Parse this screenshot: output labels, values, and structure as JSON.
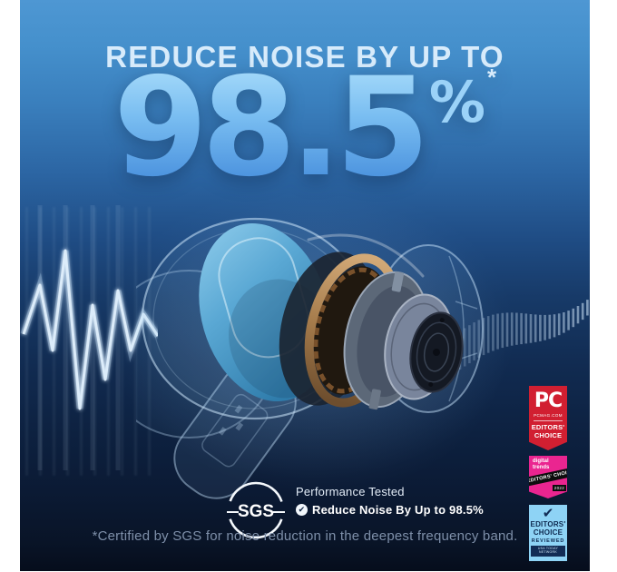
{
  "ad": {
    "headline": "REDUCE NOISE BY UP TO",
    "stat": {
      "value": "98.5",
      "unit": "%",
      "footnote_marker": "*"
    },
    "footnote": "*Certified by SGS for noise reduction in the deepest frequency band."
  },
  "certification": {
    "logo": "SGS",
    "check_glyph": "✔",
    "title": "Performance Tested",
    "claim": "Reduce Noise By Up to 98.5%"
  },
  "awards": {
    "pcmag": {
      "brand": "PC",
      "site": "PCMAG.COM",
      "line1": "EDITORS'",
      "line2": "CHOICE"
    },
    "digital_trends": {
      "brand": "digital trends",
      "ribbon": "EDITORS' CHOICE",
      "year": "2022"
    },
    "reviewed": {
      "check_glyph": "✔",
      "line1": "EDITORS'",
      "line2": "CHOICE",
      "brand": "REVIEWED",
      "network": "USA TODAY NETWORK"
    }
  },
  "colors": {
    "bg_top": "#4a92cf",
    "bg_bottom": "#070f1f",
    "headline": "#d7ebfb",
    "stat_gradient_top": "#abdefb",
    "stat_gradient_bottom": "#3f87d9",
    "footnote": "#7e8fa9",
    "pcmag_red": "#d11f31",
    "digital_trends_pink": "#ea2590",
    "reviewed_blue": "#8ed3f5",
    "reviewed_navy": "#122c55"
  }
}
